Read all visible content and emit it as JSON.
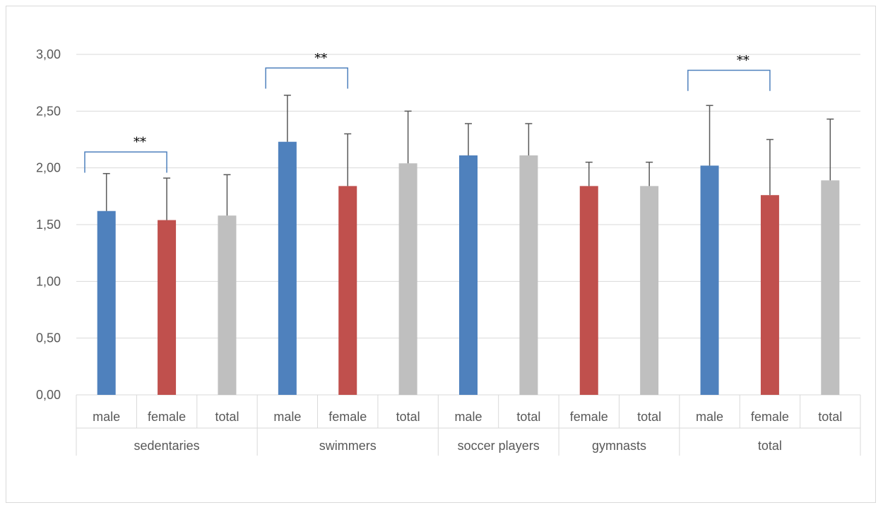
{
  "chart_data": {
    "type": "bar",
    "title": "",
    "xlabel": "",
    "ylabel": "",
    "ylim": [
      0,
      3
    ],
    "yticks": [
      "0,00",
      "0,50",
      "1,00",
      "1,50",
      "2,00",
      "2,50",
      "3,00"
    ],
    "ytick_values": [
      0,
      0.5,
      1,
      1.5,
      2,
      2.5,
      3
    ],
    "grid": true,
    "legend": "none",
    "colors": {
      "male": "#4f81bd",
      "female": "#c0504d",
      "total": "#bfbfbf",
      "error": "#595959",
      "bracket": "#4f81bd"
    },
    "groups": [
      {
        "name": "sedentaries",
        "bars": [
          {
            "label": "male",
            "kind": "male",
            "value": 1.62,
            "error": 0.33
          },
          {
            "label": "female",
            "kind": "female",
            "value": 1.54,
            "error": 0.37
          },
          {
            "label": "total",
            "kind": "total",
            "value": 1.58,
            "error": 0.36
          }
        ]
      },
      {
        "name": "swimmers",
        "bars": [
          {
            "label": "male",
            "kind": "male",
            "value": 2.23,
            "error": 0.41
          },
          {
            "label": "female",
            "kind": "female",
            "value": 1.84,
            "error": 0.46
          },
          {
            "label": "total",
            "kind": "total",
            "value": 2.04,
            "error": 0.46
          }
        ]
      },
      {
        "name": "soccer players",
        "bars": [
          {
            "label": "male",
            "kind": "male",
            "value": 2.11,
            "error": 0.28
          },
          {
            "label": "total",
            "kind": "total",
            "value": 2.11,
            "error": 0.28
          }
        ]
      },
      {
        "name": "gymnasts",
        "bars": [
          {
            "label": "female",
            "kind": "female",
            "value": 1.84,
            "error": 0.21
          },
          {
            "label": "total",
            "kind": "total",
            "value": 1.84,
            "error": 0.21
          }
        ]
      },
      {
        "name": "total",
        "bars": [
          {
            "label": "male",
            "kind": "male",
            "value": 2.02,
            "error": 0.53
          },
          {
            "label": "female",
            "kind": "female",
            "value": 1.76,
            "error": 0.49
          },
          {
            "label": "total",
            "kind": "total",
            "value": 1.89,
            "error": 0.54
          }
        ]
      }
    ],
    "annotations": [
      {
        "text": "**",
        "group": 0,
        "from_bar": 0,
        "to_bar": 1,
        "level": 2.02
      },
      {
        "text": "**",
        "group": 1,
        "from_bar": 0,
        "to_bar": 1,
        "level": 2.76
      },
      {
        "text": "**",
        "group": 4,
        "from_bar": 0,
        "to_bar": 1,
        "level": 2.74
      }
    ]
  }
}
